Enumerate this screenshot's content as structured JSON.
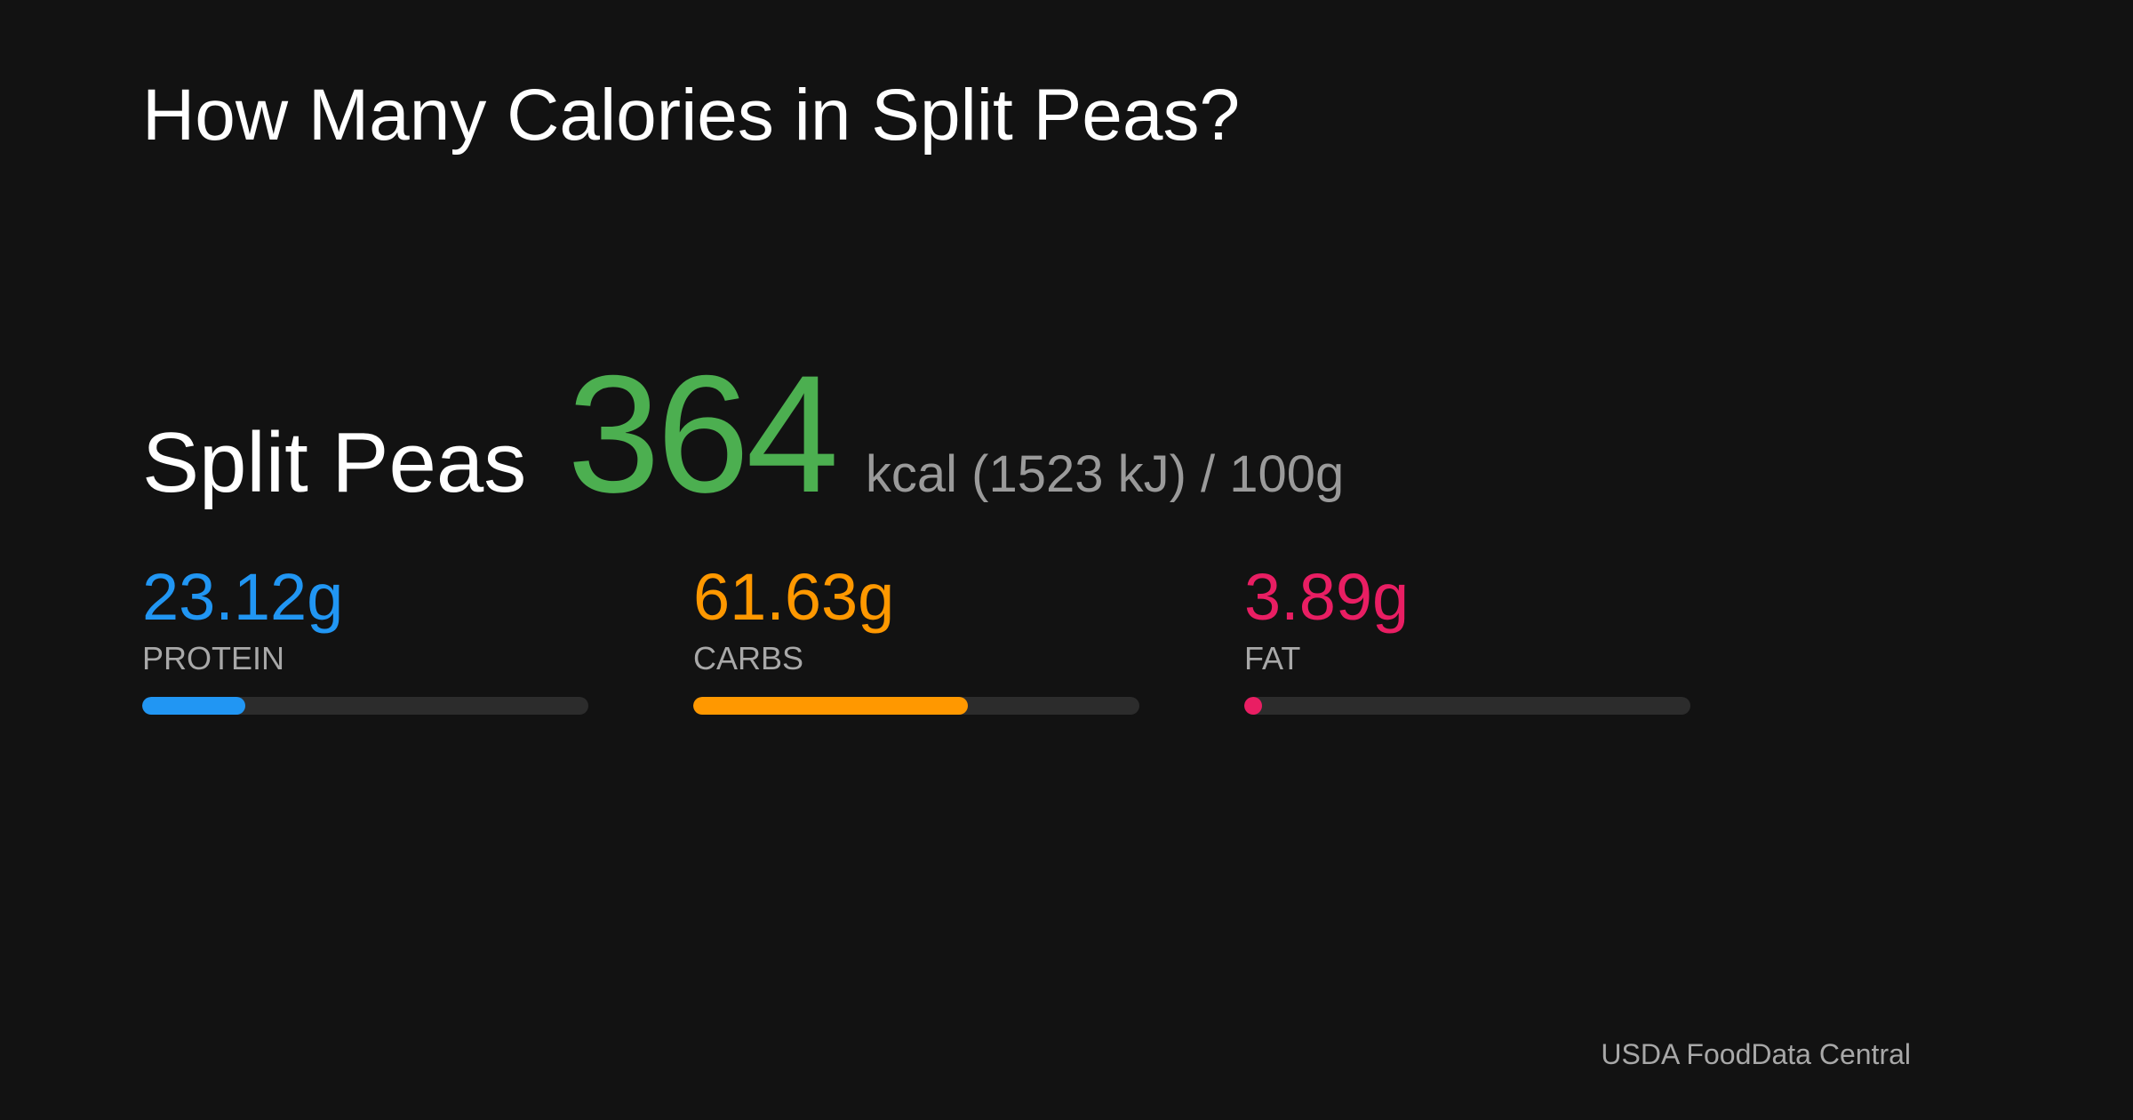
{
  "title": "How Many Calories in Split Peas?",
  "food": {
    "name": "Split Peas",
    "kcal": "364",
    "unit": "kcal (1523 kJ) / 100g",
    "accent_color": "#4caf50"
  },
  "macros": [
    {
      "value": "23.12g",
      "label": "PROTEIN",
      "color": "#2196f3",
      "fill_fraction": 0.2312
    },
    {
      "value": "61.63g",
      "label": "CARBS",
      "color": "#ff9800",
      "fill_fraction": 0.6163
    },
    {
      "value": "3.89g",
      "label": "FAT",
      "color": "#e91e63",
      "fill_fraction": 0.0389
    }
  ],
  "source": "USDA FoodData Central"
}
